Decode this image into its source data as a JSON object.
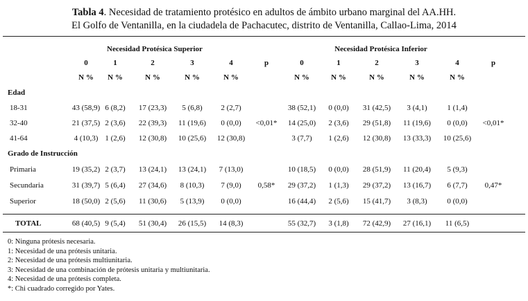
{
  "caption": {
    "label": "Tabla 4",
    "line1": ". Necesidad de tratamiento protésico en adultos de ámbito urbano marginal del AA.HH.",
    "line2": "El Golfo de Ventanilla, en la ciudadela de Pachacutec, distrito de Ventanilla, Callao-Lima, 2014"
  },
  "headers": {
    "superior": "Necesidad Protésica Superior",
    "inferior": "Necesidad Protésica Inferior",
    "levels": [
      "0",
      "1",
      "2",
      "3",
      "4"
    ],
    "p": "p",
    "unit": "N %"
  },
  "sections": [
    {
      "title": "Edad",
      "rows": [
        {
          "label": "18-31",
          "sup": [
            "43 (58,9)",
            "6 (8,2)",
            "17 (23,3)",
            "5 (6,8)",
            "2 (2,7)"
          ],
          "inf": [
            "38 (52,1)",
            "0 (0,0)",
            "31 (42,5)",
            "3 (4,1)",
            "1 (1,4)"
          ]
        },
        {
          "label": "32-40",
          "sup": [
            "21 (37,5)",
            "2 (3,6)",
            "22 (39,3)",
            "11 (19,6)",
            "0 (0,0)"
          ],
          "inf": [
            "14 (25,0)",
            "2 (3,6)",
            "29 (51,8)",
            "11 (19,6)",
            "0 (0,0)"
          ]
        },
        {
          "label": "41-64",
          "sup": [
            "4 (10,3)",
            "1 (2,6)",
            "12 (30,8)",
            "10 (25,6)",
            "12 (30,8)"
          ],
          "inf": [
            "3 (7,7)",
            "1 (2,6)",
            "12 (30,8)",
            "13 (33,3)",
            "10 (25,6)"
          ]
        }
      ],
      "p_sup": "<0,01*",
      "p_inf": "<0,01*"
    },
    {
      "title": "Grado de Instrucción",
      "rows": [
        {
          "label": "Primaria",
          "sup": [
            "19 (35,2)",
            "2 (3,7)",
            "13 (24,1)",
            "13 (24,1)",
            "7 (13,0)"
          ],
          "inf": [
            "10 (18,5)",
            "0 (0,0)",
            "28 (51,9)",
            "11 (20,4)",
            "5 (9,3)"
          ]
        },
        {
          "label": "Secundaria",
          "sup": [
            "31 (39,7)",
            "5 (6,4)",
            "27 (34,6)",
            "8 (10,3)",
            "7 (9,0)"
          ],
          "inf": [
            "29 (37,2)",
            "1 (1,3)",
            "29 (37,2)",
            "13 (16,7)",
            "6 (7,7)"
          ]
        },
        {
          "label": "Superior",
          "sup": [
            "18 (50,0)",
            "2 (5,6)",
            "11 (30,6)",
            "5 (13,9)",
            "0 (0,0)"
          ],
          "inf": [
            "16 (44,4)",
            "2 (5,6)",
            "15 (41,7)",
            "3 (8,3)",
            "0 (0,0)"
          ]
        }
      ],
      "p_sup": "0,58*",
      "p_inf": "0,47*"
    }
  ],
  "total": {
    "label": "TOTAL",
    "sup": [
      "68 (40,5)",
      "9 (5,4)",
      "51 (30,4)",
      "26 (15,5)",
      "14 (8,3)"
    ],
    "inf": [
      "55 (32,7)",
      "3 (1,8)",
      "72 (42,9)",
      "27 (16,1)",
      "11 (6,5)"
    ]
  },
  "notes": [
    "0: Ninguna prótesis necesaria.",
    "1: Necesidad de una prótesis unitaria.",
    "2: Necesidad de una prótesis multiunitaria.",
    "3: Necesidad de una combinación de prótesis unitaria y multiunitaria.",
    "4: Necesidad de una prótesis completa.",
    "*: Chi cuadrado corregido por Yates."
  ]
}
